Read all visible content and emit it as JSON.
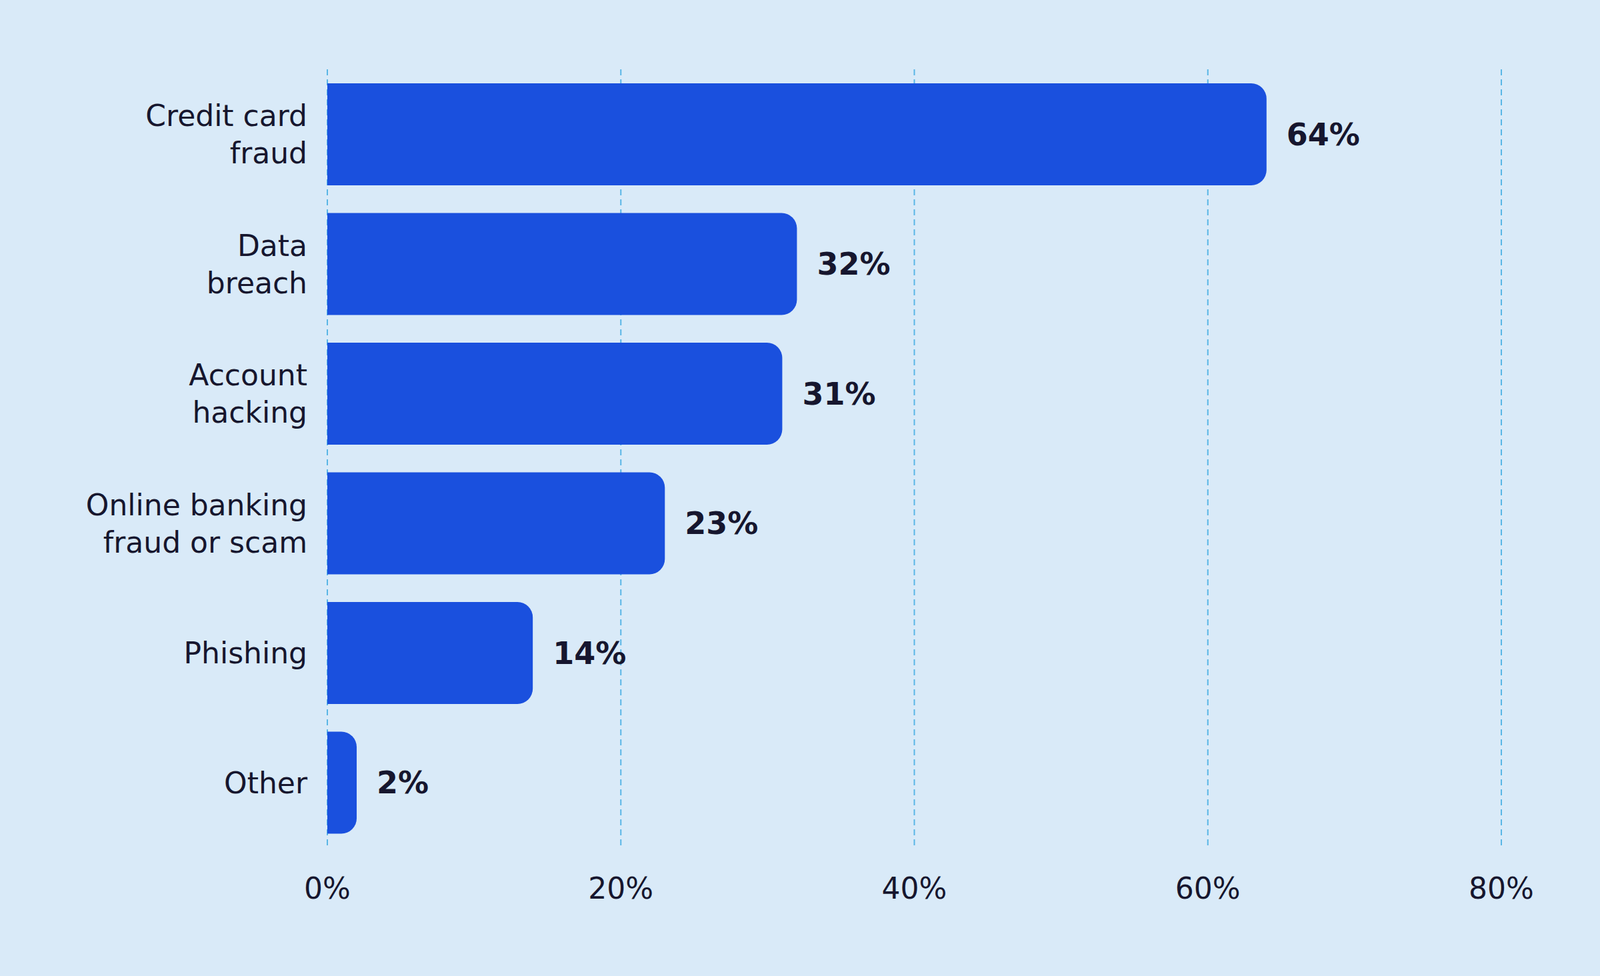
{
  "chart_data": {
    "type": "bar",
    "orientation": "horizontal",
    "categories": [
      "Credit card\nfraud",
      "Data\nbreach",
      "Account\nhacking",
      "Online banking\nfraud or scam",
      "Phishing",
      "Other"
    ],
    "values": [
      64,
      32,
      31,
      23,
      14,
      2
    ],
    "value_labels": [
      "64%",
      "32%",
      "31%",
      "23%",
      "14%",
      "2%"
    ],
    "color": "#1a50de",
    "xlim": [
      0,
      80
    ],
    "xticks": [
      {
        "value": 0,
        "label": "0%"
      },
      {
        "value": 20,
        "label": "20%"
      },
      {
        "value": 40,
        "label": "40%"
      },
      {
        "value": 60,
        "label": "60%"
      },
      {
        "value": 80,
        "label": "80%"
      }
    ],
    "grid": true,
    "data_labels": true
  }
}
